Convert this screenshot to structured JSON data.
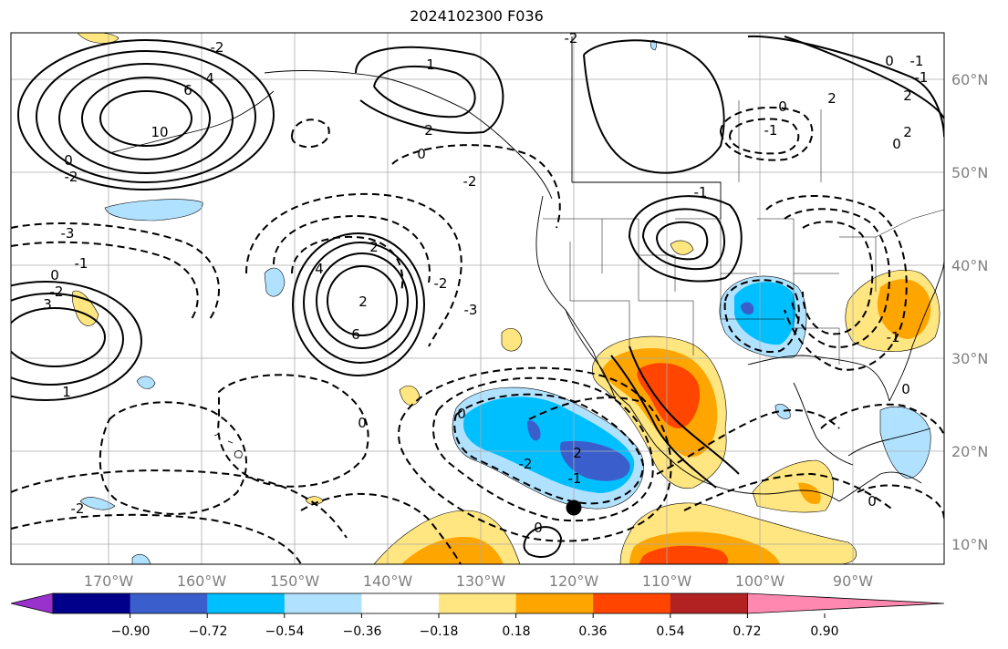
{
  "title": "2024102300 F036",
  "lat_labels": [
    "60°N",
    "50°N",
    "40°N",
    "30°N",
    "20°N",
    "10°N"
  ],
  "lon_labels": [
    "170°W",
    "160°W",
    "150°W",
    "140°W",
    "130°W",
    "120°W",
    "110°W",
    "100°W",
    "90°W"
  ],
  "colorbar": {
    "tick_labels": [
      "−0.90",
      "−0.72",
      "−0.54",
      "−0.36",
      "−0.18",
      "0.18",
      "0.36",
      "0.54",
      "0.72",
      "0.90"
    ],
    "colors": [
      "#9932cc",
      "#00008b",
      "#3a5fcd",
      "#00bfff",
      "#b0e2ff",
      "#ffffff",
      "#ffe680",
      "#ffa500",
      "#ff4500",
      "#b22222",
      "#ff88b0"
    ]
  },
  "contour_labels": [
    "2",
    "6",
    "4",
    "10",
    "0",
    "-2",
    "-3",
    "3",
    "1",
    "-1",
    "4",
    "6",
    "0",
    "-3",
    "-2",
    "2",
    "1",
    "0",
    "2",
    "-1",
    "0",
    "2",
    "-2",
    "-2",
    "0",
    "0",
    "-2",
    "-1",
    "-1",
    "0",
    "2",
    "2",
    "-1",
    "0",
    "-1",
    "0",
    "-1",
    "0",
    "0",
    "-2",
    "-2",
    "-2",
    "2"
  ],
  "marker": "storm-center-dot"
}
